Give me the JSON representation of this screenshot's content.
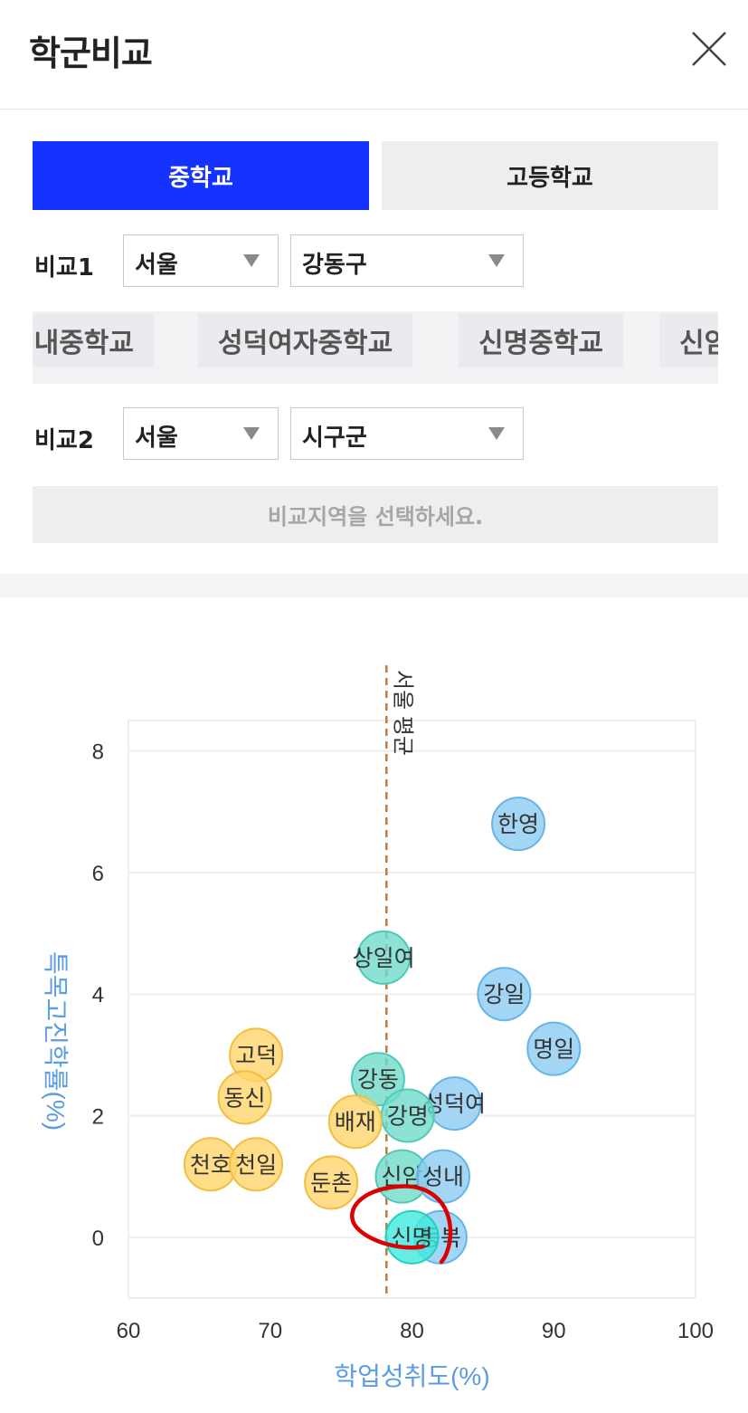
{
  "header": {
    "title": "학군비교"
  },
  "tabs": [
    {
      "label": "중학교",
      "active": true
    },
    {
      "label": "고등학교",
      "active": false
    }
  ],
  "compare1": {
    "label": "비교1",
    "region": "서울",
    "district": "강동구"
  },
  "chips": [
    "성내중학교",
    "성덕여자중학교",
    "신명중학교",
    "신암중학교"
  ],
  "compare2": {
    "label": "비교2",
    "region": "서울",
    "district": "시구군",
    "placeholder": "비교지역을 선택하세요."
  },
  "colors": {
    "accent": "#1533ff",
    "yellow": "#ffd46b",
    "teal": "#6fdccb",
    "blue": "#8ccbf2",
    "highlight": "#3ee8dc",
    "annotation": "#dd0000"
  },
  "chart_data": {
    "type": "scatter",
    "xlabel": "학업성취도(%)",
    "ylabel": "특목고진학률(%)",
    "xlim": [
      60,
      100
    ],
    "ylim": [
      -1,
      8.5
    ],
    "xticks": [
      60,
      70,
      80,
      90,
      100
    ],
    "yticks": [
      0,
      2,
      4,
      6,
      8
    ],
    "grid": true,
    "reference_line": {
      "x": 78.2,
      "label": "서울 평균"
    },
    "points": [
      {
        "name": "한영",
        "x": 87.5,
        "y": 6.8,
        "group": "blue"
      },
      {
        "name": "상일여",
        "x": 78,
        "y": 4.6,
        "group": "teal"
      },
      {
        "name": "강일",
        "x": 86.5,
        "y": 4.0,
        "group": "blue"
      },
      {
        "name": "명일",
        "x": 90,
        "y": 3.1,
        "group": "blue"
      },
      {
        "name": "고덕",
        "x": 69,
        "y": 3.0,
        "group": "yellow"
      },
      {
        "name": "동신",
        "x": 68.2,
        "y": 2.3,
        "group": "yellow"
      },
      {
        "name": "강동",
        "x": 77.6,
        "y": 2.6,
        "group": "teal"
      },
      {
        "name": "성덕여",
        "x": 83,
        "y": 2.2,
        "group": "blue"
      },
      {
        "name": "강명",
        "x": 79.7,
        "y": 2.0,
        "group": "teal"
      },
      {
        "name": "배재",
        "x": 76,
        "y": 1.9,
        "group": "yellow"
      },
      {
        "name": "천호",
        "x": 65.8,
        "y": 1.2,
        "group": "yellow"
      },
      {
        "name": "천일",
        "x": 69,
        "y": 1.2,
        "group": "yellow"
      },
      {
        "name": "둔촌",
        "x": 74.3,
        "y": 0.9,
        "group": "yellow"
      },
      {
        "name": "신암",
        "x": 79.3,
        "y": 1.0,
        "group": "teal"
      },
      {
        "name": "성내",
        "x": 82.2,
        "y": 1.0,
        "group": "blue"
      },
      {
        "name": "동북",
        "x": 82,
        "y": 0.0,
        "group": "blue"
      },
      {
        "name": "신명",
        "x": 80,
        "y": 0.0,
        "group": "highlight"
      }
    ]
  }
}
